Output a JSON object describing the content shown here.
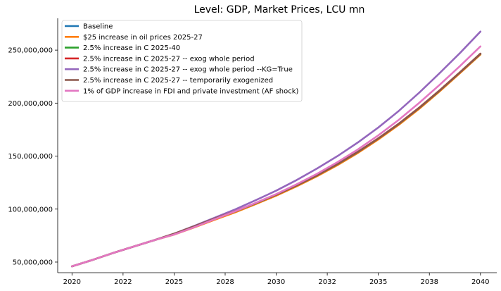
{
  "chart_data": {
    "type": "line",
    "title": "Level: GDP, Market Prices, LCU mn",
    "xlabel": "",
    "ylabel": "",
    "xlim": [
      2019.3,
      2040.8
    ],
    "ylim": [
      40000000,
      280000000
    ],
    "x_ticks": [
      2020,
      2022.5,
      2025,
      2027.5,
      2030,
      2032.5,
      2035,
      2037.5,
      2040
    ],
    "x_tick_labels": [
      "2020",
      "2022",
      "2025",
      "2028",
      "2030",
      "2032",
      "2035",
      "2038",
      "2040"
    ],
    "y_ticks": [
      50000000,
      100000000,
      150000000,
      200000000,
      250000000
    ],
    "y_tick_labels": [
      "50,000,000",
      "100,000,000",
      "150,000,000",
      "200,000,000",
      "250,000,000"
    ],
    "grid": false,
    "legend_position": "top-left",
    "x": [
      2020,
      2021,
      2022,
      2023,
      2024,
      2025,
      2026,
      2027,
      2028,
      2029,
      2030,
      2031,
      2032,
      2033,
      2034,
      2035,
      2036,
      2037,
      2038,
      2039,
      2040
    ],
    "series": [
      {
        "name": "Baseline",
        "color": "#1f77b4",
        "values": [
          46000000,
          52000000,
          58500000,
          64500000,
          70500000,
          76300000,
          83500000,
          90800000,
          97800000,
          105500000,
          113500000,
          122300000,
          131800000,
          142400000,
          153900000,
          166600000,
          180400000,
          195500000,
          211800000,
          229000000,
          246500000
        ]
      },
      {
        "name": "$25 increase in oil prices 2025-27",
        "color": "#ff7f0e",
        "values": [
          46000000,
          52000000,
          58500000,
          64500000,
          70500000,
          75900000,
          82800000,
          90000000,
          97000000,
          104700000,
          112700000,
          121500000,
          131000000,
          141500000,
          153000000,
          165700000,
          179500000,
          194600000,
          211000000,
          228300000,
          245800000
        ]
      },
      {
        "name": "2.5% increase in C 2025-40",
        "color": "#2ca02c",
        "values": [
          46000000,
          52000000,
          58500000,
          64500000,
          70500000,
          76300000,
          83500000,
          90800000,
          97800000,
          105500000,
          113500000,
          122300000,
          131800000,
          142400000,
          153900000,
          166600000,
          180400000,
          195500000,
          211800000,
          229000000,
          246500000
        ]
      },
      {
        "name": "2.5% increase in C 2025-27 -- exog whole period",
        "color": "#d62728",
        "values": [
          46000000,
          52000000,
          58500000,
          64500000,
          70500000,
          76500000,
          83700000,
          91000000,
          98000000,
          105700000,
          113700000,
          122500000,
          132000000,
          142600000,
          154100000,
          166800000,
          180600000,
          195700000,
          212000000,
          229200000,
          246700000
        ]
      },
      {
        "name": "2.5% increase in C 2025-27 -- exog whole period --KG=True",
        "color": "#9467bd",
        "values": [
          46000000,
          52000000,
          58500000,
          64500000,
          70500000,
          76800000,
          84200000,
          92000000,
          99800000,
          108400000,
          117400000,
          127400000,
          138300000,
          150000000,
          162900000,
          177000000,
          192600000,
          209800000,
          228300000,
          247300000,
          267500000
        ]
      },
      {
        "name": "2.5% increase in C 2025-27 -- temporarily exogenized",
        "color": "#8c564b",
        "values": [
          46000000,
          52000000,
          58500000,
          64500000,
          70500000,
          76800000,
          83900000,
          91200000,
          98100000,
          105600000,
          113600000,
          122400000,
          131900000,
          142500000,
          154000000,
          166700000,
          180500000,
          195600000,
          211900000,
          229100000,
          246600000
        ]
      },
      {
        "name": "1% of GDP increase in FDI and private investment (AF shock)",
        "color": "#e377c2",
        "values": [
          46000000,
          52000000,
          58500000,
          64500000,
          70500000,
          76000000,
          83000000,
          90600000,
          98000000,
          105900000,
          114200000,
          123400000,
          133300000,
          144300000,
          156300000,
          169600000,
          184200000,
          200200000,
          217200000,
          235000000,
          253500000
        ]
      }
    ]
  }
}
